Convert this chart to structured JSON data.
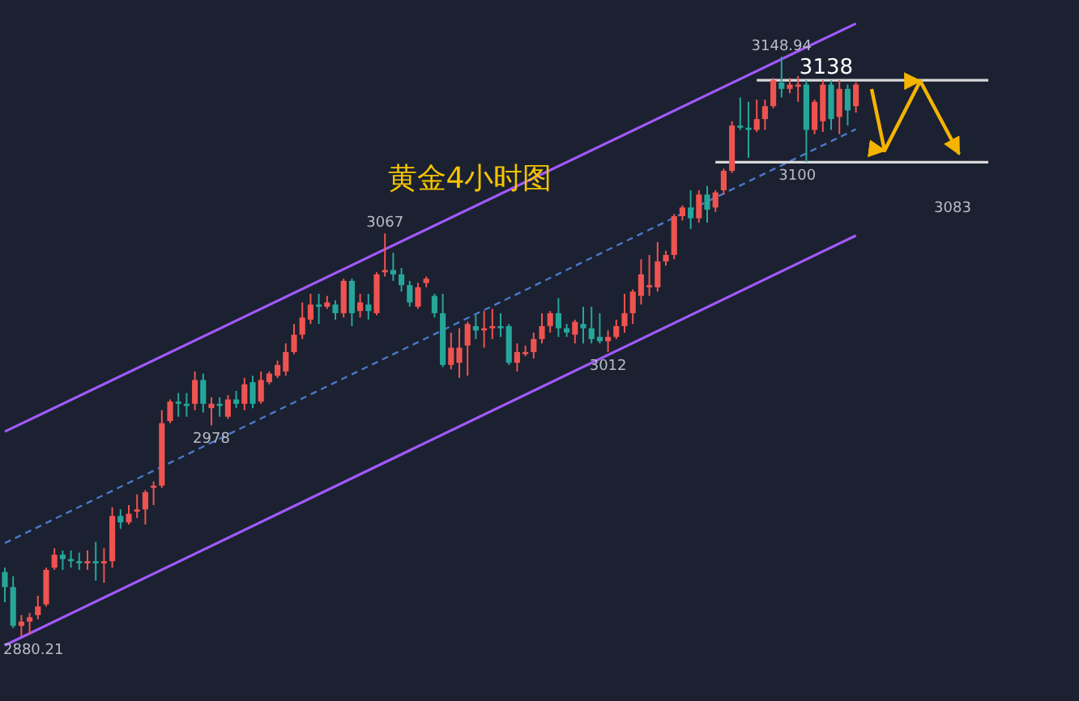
{
  "chart_data": {
    "type": "candlestick",
    "title": "黄金4小时图",
    "categories": [
      null,
      null,
      null,
      null,
      null,
      null,
      null,
      null,
      null,
      null,
      null,
      null,
      null,
      null,
      null,
      null,
      null,
      null,
      null,
      null,
      null,
      null,
      null,
      null,
      null,
      null,
      null,
      null,
      null,
      null,
      null,
      null,
      null,
      null,
      null,
      null,
      null,
      null,
      null,
      null,
      null,
      null,
      null,
      null,
      null,
      null,
      null,
      null,
      null,
      null,
      null,
      null,
      null,
      null,
      null,
      null,
      null,
      null,
      null,
      null,
      null,
      null,
      null,
      null,
      null,
      null,
      null,
      null,
      null,
      null,
      null,
      null,
      null,
      null,
      null,
      null,
      null,
      null,
      null,
      null,
      null,
      null,
      null,
      null,
      null,
      null,
      null,
      null,
      null,
      null,
      null,
      null,
      null,
      null,
      null,
      null,
      null,
      null,
      null,
      null,
      null,
      null,
      null,
      null
    ],
    "ohlc": [
      [
        2910,
        2912,
        2896,
        2903
      ],
      [
        2903,
        2908,
        2884,
        2885
      ],
      [
        2885,
        2890,
        2880.21,
        2887
      ],
      [
        2887,
        2891,
        2881,
        2889
      ],
      [
        2890,
        2899,
        2888,
        2894
      ],
      [
        2895,
        2912,
        2894,
        2911
      ],
      [
        2912,
        2921,
        2911,
        2918
      ],
      [
        2918,
        2920,
        2911,
        2916
      ],
      [
        2916,
        2920,
        2912,
        2915
      ],
      [
        2915,
        2919,
        2911,
        2914
      ],
      [
        2914,
        2920,
        2911,
        2915
      ],
      [
        2915,
        2924,
        2906,
        2914
      ],
      [
        2914,
        2921,
        2905,
        2915
      ],
      [
        2915,
        2940,
        2912,
        2936
      ],
      [
        2936,
        2939,
        2930,
        2933
      ],
      [
        2933,
        2941,
        2932,
        2937
      ],
      [
        2938,
        2946,
        2935,
        2939
      ],
      [
        2939,
        2948,
        2932,
        2947
      ],
      [
        2949,
        2952,
        2941,
        2950
      ],
      [
        2950,
        2985,
        2949,
        2979
      ],
      [
        2980,
        2990,
        2979,
        2989
      ],
      [
        2989,
        2993,
        2982,
        2988
      ],
      [
        2988,
        2993,
        2982,
        2987
      ],
      [
        2988,
        3003,
        2985,
        2999
      ],
      [
        2999,
        3002,
        2984,
        2988
      ],
      [
        2986,
        2991,
        2978,
        2988
      ],
      [
        2988,
        2991,
        2982,
        2987
      ],
      [
        2982,
        2992,
        2981,
        2990
      ],
      [
        2990,
        2994,
        2986,
        2988
      ],
      [
        2988,
        3000,
        2985,
        2997
      ],
      [
        2998,
        3001,
        2986,
        2988
      ],
      [
        2989,
        3003,
        2988,
        2999
      ],
      [
        2998,
        3003,
        2997,
        3002
      ],
      [
        3001,
        3008,
        3000,
        3006
      ],
      [
        3003,
        3016,
        3001,
        3012
      ],
      [
        3012,
        3025,
        3011,
        3020
      ],
      [
        3020,
        3035,
        3018,
        3028
      ],
      [
        3027,
        3039,
        3025,
        3034
      ],
      [
        3034,
        3039,
        3025,
        3033
      ],
      [
        3033,
        3038,
        3032,
        3035
      ],
      [
        3034,
        3036,
        3027,
        3030
      ],
      [
        3030,
        3046,
        3028,
        3045
      ],
      [
        3045,
        3046,
        3024,
        3030
      ],
      [
        3031,
        3039,
        3028,
        3035
      ],
      [
        3034,
        3039,
        3027,
        3031
      ],
      [
        3030,
        3049,
        3029,
        3048
      ],
      [
        3049,
        3067,
        3047,
        3050
      ],
      [
        3050,
        3058,
        3045,
        3048
      ],
      [
        3048,
        3051,
        3040,
        3043
      ],
      [
        3043,
        3045,
        3033,
        3035
      ],
      [
        3033,
        3044,
        3032,
        3042
      ],
      [
        3044,
        3047,
        3042,
        3046
      ],
      [
        3038,
        3039,
        3028,
        3030
      ],
      [
        3030,
        3039,
        3005,
        3006
      ],
      [
        3006,
        3021,
        3004,
        3014
      ],
      [
        3007,
        3023,
        3000,
        3014
      ],
      [
        3015,
        3026,
        3001,
        3025
      ],
      [
        3024,
        3029,
        3018,
        3022
      ],
      [
        3022,
        3031,
        3014,
        3023
      ],
      [
        3023,
        3032,
        3018,
        3024
      ],
      [
        3024,
        3030,
        3019,
        3023
      ],
      [
        3024,
        3025,
        3006,
        3007
      ],
      [
        3007,
        3016,
        3003,
        3012
      ],
      [
        3011,
        3015,
        3010,
        3012
      ],
      [
        3012,
        3021,
        3009,
        3018
      ],
      [
        3018,
        3030,
        3016,
        3024
      ],
      [
        3024,
        3031,
        3021,
        3030
      ],
      [
        3030,
        3037,
        3019,
        3023
      ],
      [
        3023,
        3025,
        3019,
        3021
      ],
      [
        3020,
        3027,
        3016,
        3026
      ],
      [
        3025,
        3033,
        3016,
        3023
      ],
      [
        3023,
        3033,
        3016,
        3018
      ],
      [
        3019,
        3030,
        3016,
        3017
      ],
      [
        3017,
        3022,
        3012,
        3019
      ],
      [
        3019,
        3027,
        3018,
        3024
      ],
      [
        3024,
        3039,
        3021,
        3030
      ],
      [
        3030,
        3041,
        3025,
        3040
      ],
      [
        3038,
        3055,
        3034,
        3048
      ],
      [
        3042,
        3057,
        3038,
        3043
      ],
      [
        3042,
        3063,
        3040,
        3054
      ],
      [
        3054,
        3059,
        3052,
        3057
      ],
      [
        3057,
        3076,
        3055,
        3075
      ],
      [
        3075,
        3080,
        3073,
        3079
      ],
      [
        3079,
        3087,
        3069,
        3074
      ],
      [
        3074,
        3087,
        3072,
        3085
      ],
      [
        3085,
        3089,
        3072,
        3078
      ],
      [
        3079,
        3087,
        3077,
        3086
      ],
      [
        3087,
        3097,
        3085,
        3096
      ],
      [
        3096,
        3119,
        3095,
        3117
      ],
      [
        3117,
        3130,
        3115,
        3116
      ],
      [
        3116,
        3128,
        3102,
        3115
      ],
      [
        3115,
        3129,
        3114,
        3120
      ],
      [
        3120,
        3129,
        3115,
        3126
      ],
      [
        3126,
        3139,
        3125,
        3138
      ],
      [
        3137,
        3148.94,
        3130,
        3134
      ],
      [
        3134,
        3139,
        3132,
        3136
      ],
      [
        3135,
        3140,
        3128,
        3136
      ],
      [
        3136,
        3138,
        3100,
        3115
      ],
      [
        3115,
        3129,
        3113,
        3128
      ],
      [
        3119,
        3138,
        3114,
        3136
      ],
      [
        3136,
        3138,
        3115,
        3120
      ],
      [
        3121,
        3138,
        3113,
        3134
      ],
      [
        3134,
        3136,
        3117,
        3124
      ],
      [
        3126,
        3137,
        3123,
        3136
      ]
    ],
    "series": [
      {
        "type": "line",
        "color": "#a259ff",
        "line_style": "solid",
        "values": [
          2975.1,
          null,
          null,
          null,
          null,
          null,
          null,
          null,
          null,
          null,
          null,
          null,
          null,
          null,
          null,
          null,
          null,
          null,
          null,
          null,
          null,
          null,
          null,
          null,
          null,
          null,
          null,
          null,
          null,
          null,
          null,
          null,
          null,
          null,
          null,
          null,
          null,
          null,
          null,
          null,
          null,
          null,
          null,
          null,
          null,
          null,
          null,
          null,
          null,
          null,
          null,
          null,
          null,
          null,
          null,
          null,
          null,
          null,
          null,
          null,
          null,
          null,
          null,
          null,
          null,
          null,
          null,
          null,
          null,
          null,
          null,
          null,
          null,
          null,
          null,
          null,
          null,
          null,
          null,
          null,
          null,
          null,
          null,
          null,
          null,
          null,
          null,
          null,
          null,
          null,
          null,
          null,
          null,
          null,
          null,
          null,
          null,
          null,
          null,
          null,
          null,
          null,
          null,
          3164.3
        ]
      },
      {
        "type": "line",
        "color": "#a259ff",
        "line_style": "solid",
        "values": [
          2876.0,
          null,
          null,
          null,
          null,
          null,
          null,
          null,
          null,
          null,
          null,
          null,
          null,
          null,
          null,
          null,
          null,
          null,
          null,
          null,
          null,
          null,
          null,
          null,
          null,
          null,
          null,
          null,
          null,
          null,
          null,
          null,
          null,
          null,
          null,
          null,
          null,
          null,
          null,
          null,
          null,
          null,
          null,
          null,
          null,
          null,
          null,
          null,
          null,
          null,
          null,
          null,
          null,
          null,
          null,
          null,
          null,
          null,
          null,
          null,
          null,
          null,
          null,
          null,
          null,
          null,
          null,
          null,
          null,
          null,
          null,
          null,
          null,
          null,
          null,
          null,
          null,
          null,
          null,
          null,
          null,
          null,
          null,
          null,
          null,
          null,
          null,
          null,
          null,
          null,
          null,
          null,
          null,
          null,
          null,
          null,
          null,
          null,
          null,
          null,
          null,
          null,
          null,
          3066.0
        ]
      },
      {
        "type": "line",
        "color": "#4a78c8",
        "line_style": "dashed",
        "values": [
          2923.4,
          null,
          null,
          null,
          null,
          null,
          null,
          null,
          null,
          null,
          null,
          null,
          null,
          null,
          null,
          null,
          null,
          null,
          null,
          null,
          null,
          null,
          null,
          null,
          null,
          null,
          null,
          null,
          null,
          null,
          null,
          null,
          null,
          null,
          null,
          null,
          null,
          null,
          null,
          null,
          null,
          null,
          null,
          null,
          null,
          null,
          null,
          null,
          null,
          null,
          null,
          null,
          null,
          null,
          null,
          null,
          null,
          null,
          null,
          null,
          null,
          null,
          null,
          null,
          null,
          null,
          null,
          null,
          null,
          null,
          null,
          null,
          null,
          null,
          null,
          null,
          null,
          null,
          null,
          null,
          null,
          null,
          null,
          null,
          null,
          null,
          null,
          null,
          null,
          null,
          null,
          null,
          null,
          null,
          null,
          null,
          null,
          null,
          null,
          null,
          null,
          null,
          null,
          3115.3
        ]
      }
    ],
    "ref_lines": [
      {
        "axis": "y",
        "value": 3138,
        "label": "3138",
        "color": "#d8d8d8"
      },
      {
        "axis": "y",
        "value": 3100,
        "label": "3100",
        "color": "#d8d8d8"
      }
    ],
    "annotations": [
      {
        "text": "3148.94",
        "y": 3148.94
      },
      {
        "text": "3067",
        "y": 3067
      },
      {
        "text": "3012",
        "y": 3012
      },
      {
        "text": "2978",
        "y": 2978
      },
      {
        "text": "2880.21",
        "y": 2880.21
      },
      "3083"
    ]
  }
}
